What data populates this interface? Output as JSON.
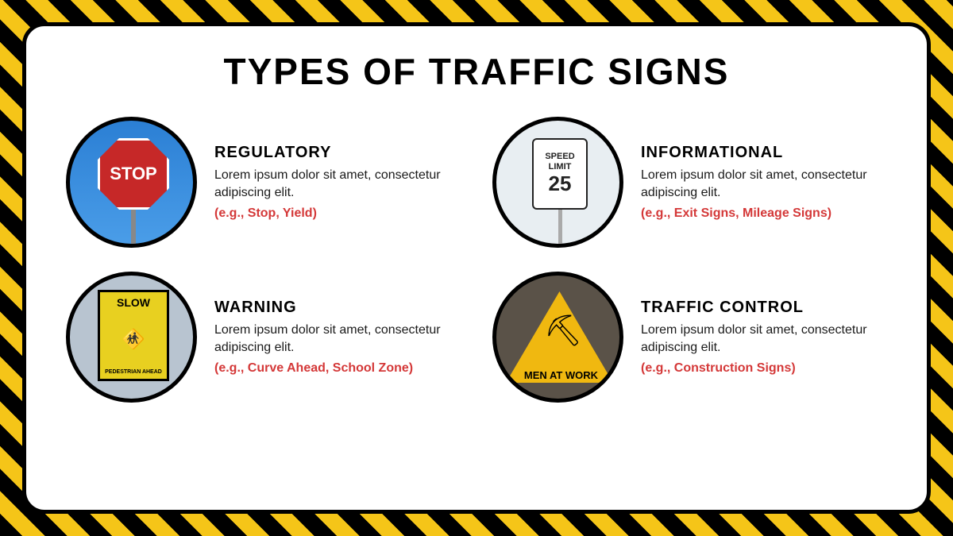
{
  "title": "TYPES OF TRAFFIC SIGNS",
  "title_fontsize": 46,
  "colors": {
    "hazard_yellow": "#f5c518",
    "hazard_black": "#000000",
    "panel_bg": "#ffffff",
    "border_black": "#000000",
    "text_black": "#000000",
    "example_red": "#d43838"
  },
  "heading_fontsize": 20,
  "desc_fontsize": 16,
  "example_fontsize": 16,
  "circle_diameter": 165,
  "items": [
    {
      "heading": "REGULATORY",
      "desc": "Lorem ipsum dolor sit amet, consectetur adipiscing elit.",
      "example": "(e.g., Stop, Yield)",
      "sign_type": "stop",
      "sign_label": "STOP",
      "sign_bg": "#2b7fd4",
      "sign_color": "#c62828"
    },
    {
      "heading": "INFORMATIONAL",
      "desc": "Lorem ipsum dolor sit amet, consectetur adipiscing elit.",
      "example": "(e.g., Exit Signs, Mileage Signs)",
      "sign_type": "speed",
      "sign_line1": "SPEED",
      "sign_line2": "LIMIT",
      "sign_value": "25",
      "sign_bg": "#e8eef2"
    },
    {
      "heading": "WARNING",
      "desc": "Lorem ipsum dolor sit amet, consectetur adipiscing elit.",
      "example": "(e.g., Curve Ahead, School Zone)",
      "sign_type": "slow",
      "sign_top": "SLOW",
      "sign_bottom": "PEDESTRIAN AHEAD",
      "sign_bg": "#b8c4d0",
      "sign_color": "#e8d020"
    },
    {
      "heading": "TRAFFIC CONTROL",
      "desc": "Lorem ipsum dolor sit amet, consectetur adipiscing elit.",
      "example": "(e.g., Construction Signs)",
      "sign_type": "work",
      "sign_label": "MEN AT WORK",
      "sign_bg": "#5a5248",
      "sign_color": "#f0b810"
    }
  ]
}
